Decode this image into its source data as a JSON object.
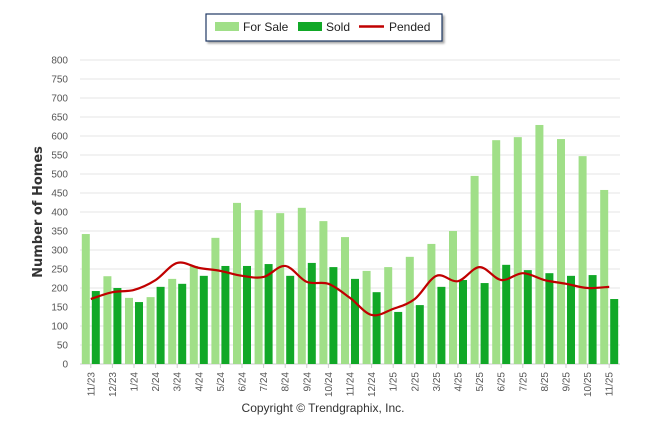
{
  "chart_data": {
    "type": "bar",
    "title": "",
    "xlabel": "",
    "ylabel": "Number of Homes",
    "ylim": [
      0,
      800
    ],
    "yticks": [
      0,
      50,
      100,
      150,
      200,
      250,
      300,
      350,
      400,
      450,
      500,
      550,
      600,
      650,
      700,
      750,
      800
    ],
    "grid": true,
    "legend_position": "top-center",
    "categories": [
      "11/23",
      "12/23",
      "1/24",
      "2/24",
      "3/24",
      "4/24",
      "5/24",
      "6/24",
      "7/24",
      "8/24",
      "9/24",
      "10/24",
      "11/24",
      "12/24",
      "1/25",
      "2/25",
      "3/25",
      "4/25",
      "5/25",
      "6/25",
      "7/25",
      "8/25",
      "9/25",
      "10/25",
      "11/25"
    ],
    "series": [
      {
        "name": "For Sale",
        "kind": "bar",
        "color": "#a0df88",
        "values": [
          342,
          231,
          174,
          176,
          224,
          258,
          332,
          424,
          405,
          397,
          411,
          376,
          334,
          245,
          255,
          282,
          316,
          350,
          495,
          589,
          597,
          629,
          592,
          547,
          458
        ]
      },
      {
        "name": "Sold",
        "kind": "bar",
        "color": "#11a827",
        "values": [
          192,
          200,
          163,
          203,
          211,
          232,
          258,
          258,
          263,
          232,
          266,
          255,
          224,
          189,
          137,
          155,
          203,
          221,
          213,
          261,
          247,
          239,
          232,
          234,
          171
        ]
      },
      {
        "name": "Pended",
        "kind": "line",
        "color": "#c00000",
        "values": [
          171,
          189,
          195,
          221,
          266,
          253,
          245,
          232,
          229,
          258,
          216,
          211,
          174,
          129,
          145,
          171,
          232,
          218,
          255,
          221,
          239,
          221,
          211,
          200,
          203
        ]
      }
    ]
  },
  "footer": {
    "copyright": "Copyright © Trendgraphix, Inc."
  }
}
